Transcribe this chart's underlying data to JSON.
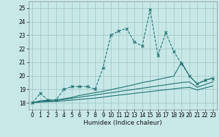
{
  "title": "",
  "xlabel": "Humidex (Indice chaleur)",
  "xlim": [
    -0.5,
    23.5
  ],
  "ylim": [
    17.5,
    25.5
  ],
  "yticks": [
    18,
    19,
    20,
    21,
    22,
    23,
    24,
    25
  ],
  "xticks": [
    0,
    1,
    2,
    3,
    4,
    5,
    6,
    7,
    8,
    9,
    10,
    11,
    12,
    13,
    14,
    15,
    16,
    17,
    18,
    19,
    20,
    21,
    22,
    23
  ],
  "background_color": "#c8e8e8",
  "grid_color": "#a0c8c8",
  "line_color": "#1a6e6e",
  "lines": [
    {
      "x": [
        0,
        1,
        2,
        3,
        4,
        5,
        6,
        7,
        8,
        9,
        10,
        11,
        12,
        13,
        14,
        15,
        16,
        17,
        18,
        19,
        20,
        21,
        22,
        23
      ],
      "y": [
        18.0,
        18.7,
        18.2,
        18.2,
        19.0,
        19.2,
        19.2,
        19.2,
        19.0,
        20.6,
        23.0,
        23.3,
        23.5,
        22.5,
        22.2,
        24.9,
        21.5,
        23.2,
        21.8,
        20.9,
        20.0,
        19.4,
        19.7,
        19.8
      ],
      "marker": "x",
      "markersize": 3,
      "linestyle": "--",
      "linewidth": 0.8
    },
    {
      "x": [
        0,
        1,
        2,
        3,
        4,
        5,
        6,
        7,
        8,
        9,
        10,
        11,
        12,
        13,
        14,
        15,
        16,
        17,
        18,
        19,
        20,
        21,
        22,
        23
      ],
      "y": [
        18.0,
        18.15,
        18.2,
        18.2,
        18.3,
        18.4,
        18.55,
        18.65,
        18.75,
        18.85,
        18.97,
        19.1,
        19.22,
        19.35,
        19.5,
        19.6,
        19.73,
        19.85,
        19.97,
        21.0,
        20.0,
        19.4,
        19.65,
        19.85
      ],
      "marker": null,
      "markersize": 0,
      "linestyle": "-",
      "linewidth": 0.8
    },
    {
      "x": [
        0,
        1,
        2,
        3,
        4,
        5,
        6,
        7,
        8,
        9,
        10,
        11,
        12,
        13,
        14,
        15,
        16,
        17,
        18,
        19,
        20,
        21,
        22,
        23
      ],
      "y": [
        18.0,
        18.1,
        18.15,
        18.18,
        18.25,
        18.33,
        18.42,
        18.5,
        18.58,
        18.67,
        18.75,
        18.83,
        18.92,
        19.0,
        19.08,
        19.17,
        19.25,
        19.33,
        19.42,
        19.5,
        19.55,
        19.15,
        19.35,
        19.55
      ],
      "marker": null,
      "markersize": 0,
      "linestyle": "-",
      "linewidth": 0.8
    },
    {
      "x": [
        0,
        1,
        2,
        3,
        4,
        5,
        6,
        7,
        8,
        9,
        10,
        11,
        12,
        13,
        14,
        15,
        16,
        17,
        18,
        19,
        20,
        21,
        22,
        23
      ],
      "y": [
        18.0,
        18.05,
        18.08,
        18.1,
        18.15,
        18.2,
        18.25,
        18.3,
        18.35,
        18.42,
        18.5,
        18.57,
        18.63,
        18.7,
        18.77,
        18.83,
        18.9,
        18.97,
        19.03,
        19.1,
        19.15,
        18.95,
        19.1,
        19.25
      ],
      "marker": null,
      "markersize": 0,
      "linestyle": "-",
      "linewidth": 0.8
    }
  ]
}
